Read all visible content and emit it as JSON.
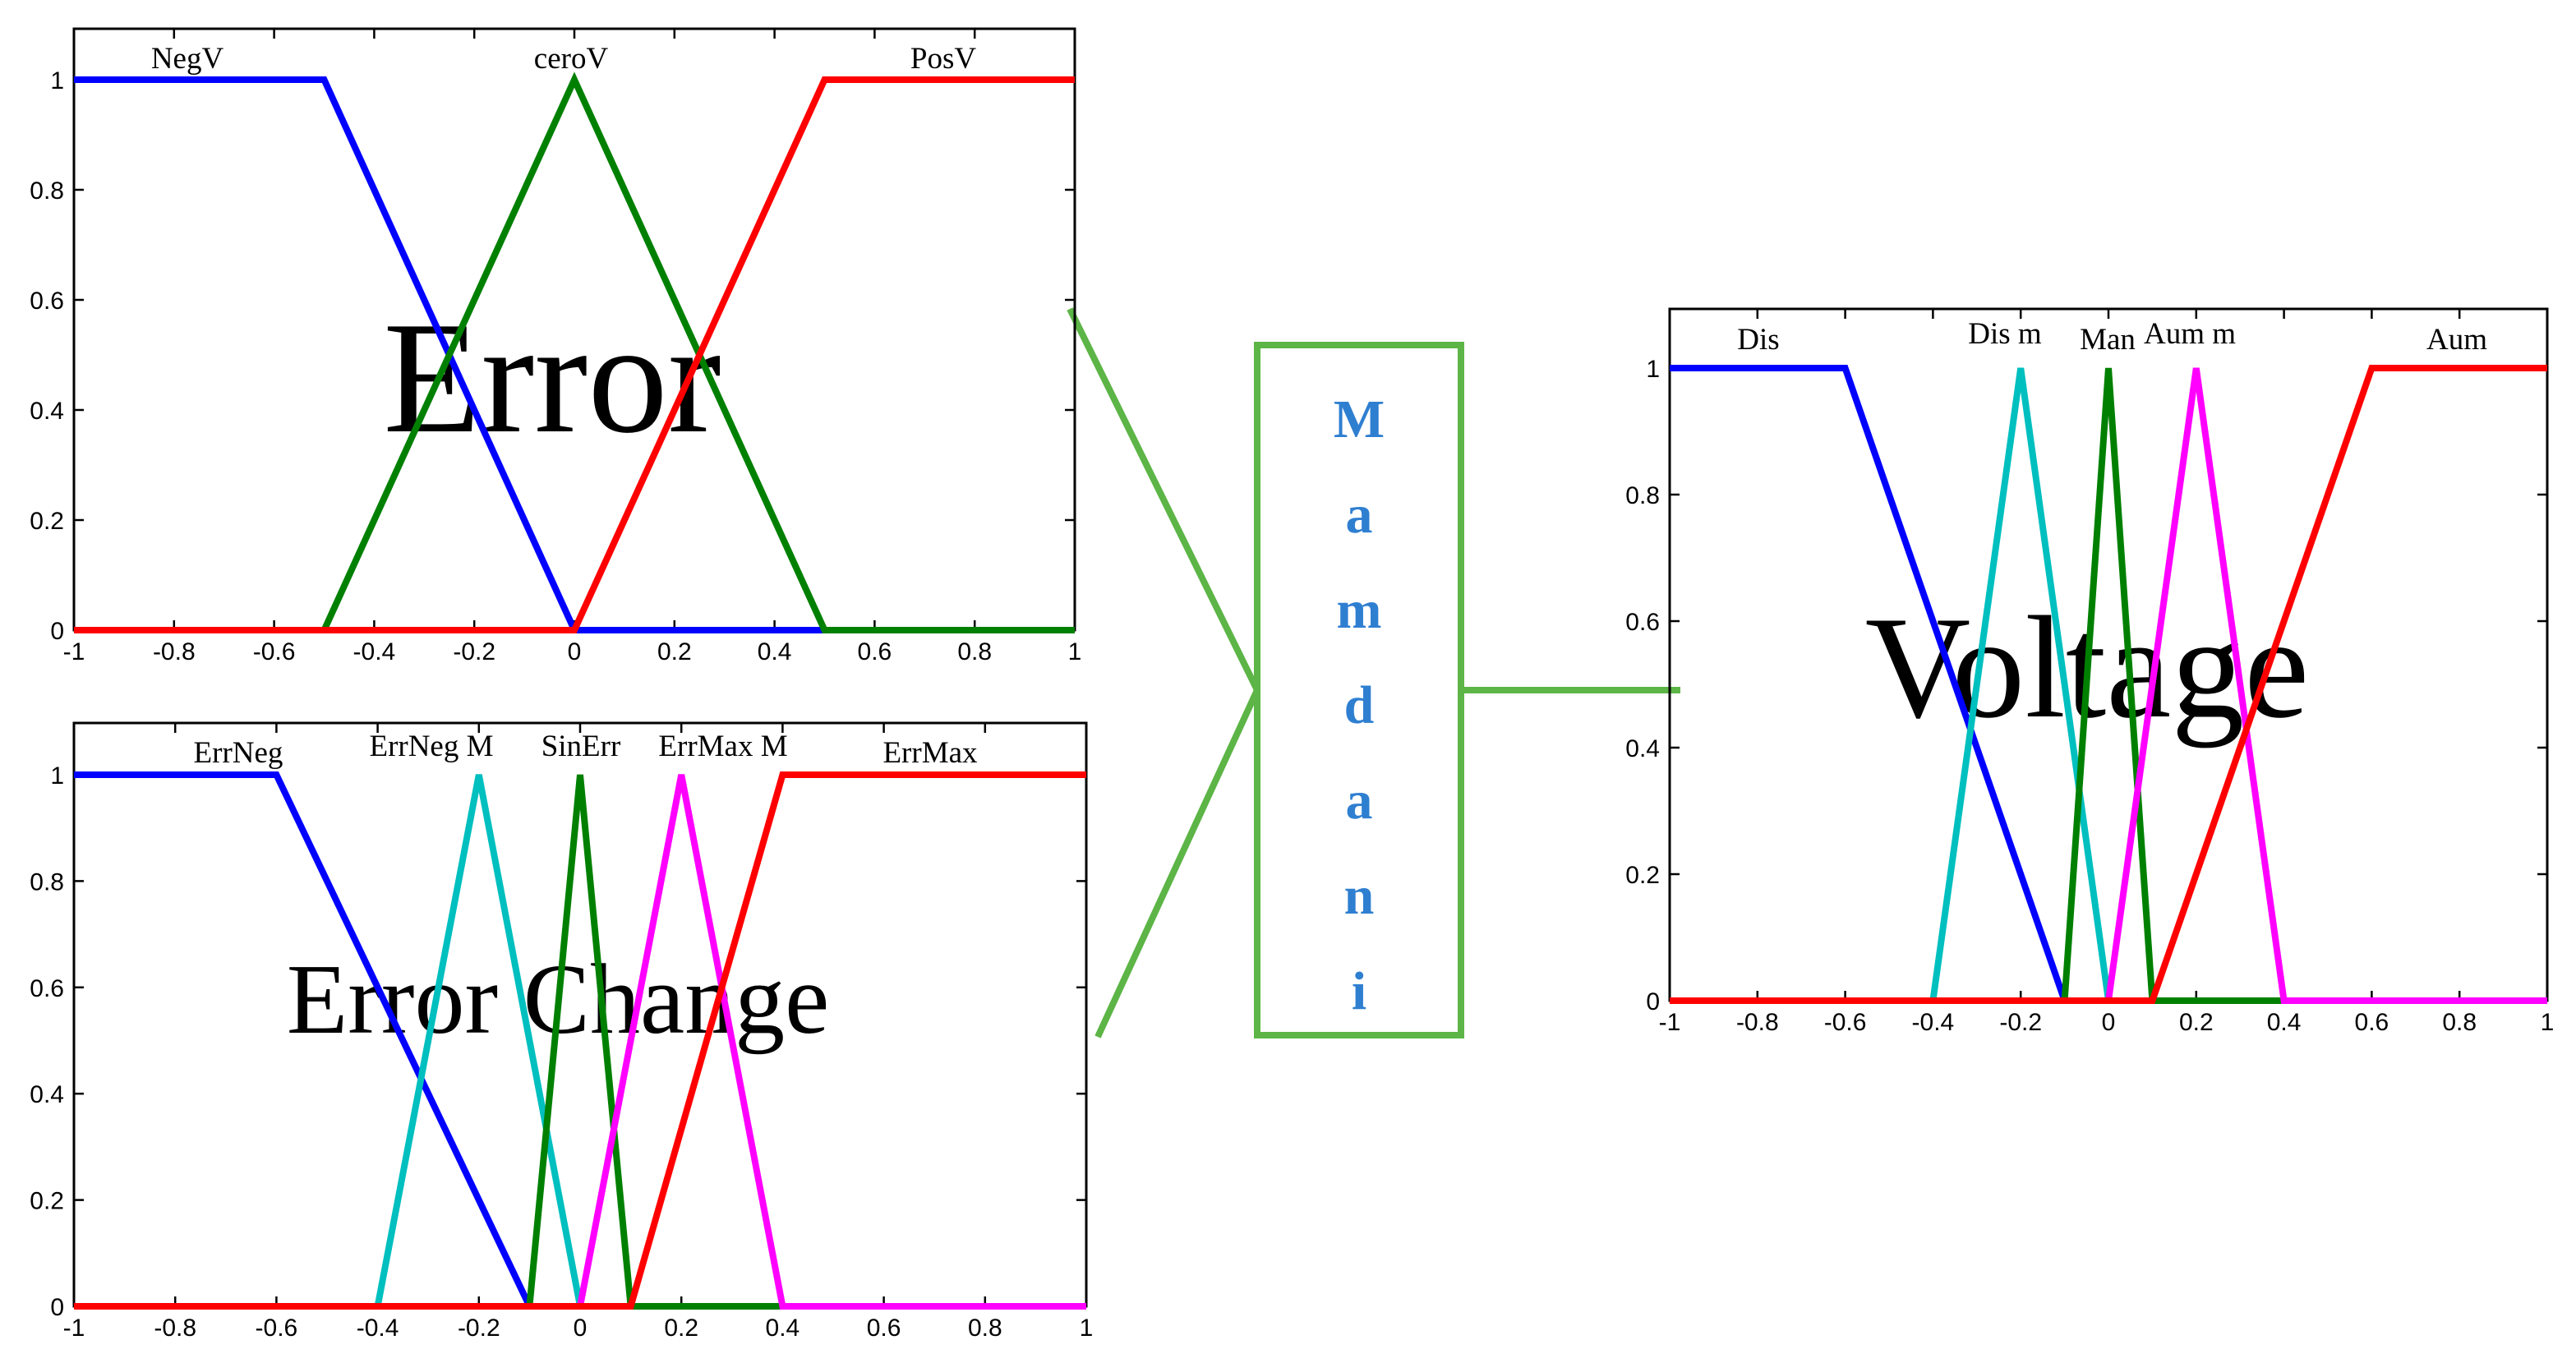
{
  "colors": {
    "connector": "#5cb546",
    "mamdani_text": "#2f7fd1"
  },
  "mamdani": {
    "letters": [
      "M",
      "a",
      "m",
      "d",
      "a",
      "n",
      "i"
    ]
  },
  "chart_data": [
    {
      "type": "line",
      "overlay_label": "Error",
      "x_ticks": [
        "-1",
        "-0.8",
        "-0.6",
        "-0.4",
        "-0.2",
        "0",
        "0.2",
        "0.4",
        "0.6",
        "0.8",
        "1"
      ],
      "y_ticks": [
        "0",
        "0.2",
        "0.4",
        "0.6",
        "0.8",
        "1"
      ],
      "xlim": [
        -1,
        1
      ],
      "ylim": [
        0,
        1
      ],
      "series": [
        {
          "name": "NegV",
          "color": "#0000ff",
          "x": [
            -1,
            -0.5,
            0,
            1
          ],
          "y": [
            1,
            1,
            0,
            0
          ]
        },
        {
          "name": "ceroV",
          "color": "#008000",
          "x": [
            -1,
            -0.5,
            0,
            0.5,
            1
          ],
          "y": [
            0,
            0,
            1,
            0,
            0
          ]
        },
        {
          "name": "PosV",
          "color": "#ff0000",
          "x": [
            -1,
            0,
            0.5,
            1
          ],
          "y": [
            0,
            0,
            1,
            1
          ]
        }
      ]
    },
    {
      "type": "line",
      "overlay_label": "Error Change",
      "x_ticks": [
        "-1",
        "-0.8",
        "-0.6",
        "-0.4",
        "-0.2",
        "0",
        "0.2",
        "0.4",
        "0.6",
        "0.8",
        "1"
      ],
      "y_ticks": [
        "0",
        "0.2",
        "0.4",
        "0.6",
        "0.8",
        "1"
      ],
      "xlim": [
        -1,
        1
      ],
      "ylim": [
        0,
        1
      ],
      "series": [
        {
          "name": "ErrNeg",
          "color": "#0000ff",
          "x": [
            -1,
            -0.6,
            -0.1,
            1
          ],
          "y": [
            1,
            1,
            0,
            0
          ]
        },
        {
          "name": "ErrNeg M",
          "color": "#00bfbf",
          "x": [
            -1,
            -0.4,
            -0.2,
            0,
            1
          ],
          "y": [
            0,
            0,
            1,
            0,
            0
          ]
        },
        {
          "name": "SinErr",
          "color": "#008000",
          "x": [
            -1,
            -0.1,
            0,
            0.1,
            1
          ],
          "y": [
            0,
            0,
            1,
            0,
            0
          ]
        },
        {
          "name": "ErrMax M",
          "color": "#ff00ff",
          "x": [
            -1,
            0,
            0.2,
            0.4,
            1
          ],
          "y": [
            0,
            0,
            1,
            0,
            0
          ]
        },
        {
          "name": "ErrMax",
          "color": "#ff0000",
          "x": [
            -1,
            0.1,
            0.4,
            1
          ],
          "y": [
            0,
            0,
            1,
            1
          ]
        }
      ]
    },
    {
      "type": "line",
      "overlay_label": "Voltage",
      "x_ticks": [
        "-1",
        "-0.8",
        "-0.6",
        "-0.4",
        "-0.2",
        "0",
        "0.2",
        "0.4",
        "0.6",
        "0.8",
        "1"
      ],
      "y_ticks": [
        "0",
        "0.2",
        "0.4",
        "0.6",
        "0.8",
        "1"
      ],
      "xlim": [
        -1,
        1
      ],
      "ylim": [
        0,
        1
      ],
      "series": [
        {
          "name": "Dis",
          "color": "#0000ff",
          "x": [
            -1,
            -0.6,
            -0.1,
            1
          ],
          "y": [
            1,
            1,
            0,
            0
          ]
        },
        {
          "name": "Dis m",
          "color": "#00bfbf",
          "x": [
            -1,
            -0.4,
            -0.2,
            0,
            1
          ],
          "y": [
            0,
            0,
            1,
            0,
            0
          ]
        },
        {
          "name": "Man",
          "color": "#008000",
          "x": [
            -1,
            -0.1,
            0,
            0.1,
            1
          ],
          "y": [
            0,
            0,
            1,
            0,
            0
          ]
        },
        {
          "name": "Aum m",
          "color": "#ff00ff",
          "x": [
            -1,
            0,
            0.2,
            0.4,
            1
          ],
          "y": [
            0,
            0,
            1,
            0,
            0
          ]
        },
        {
          "name": "Aum",
          "color": "#ff0000",
          "x": [
            -1,
            0.1,
            0.6,
            1
          ],
          "y": [
            0,
            0,
            1,
            1
          ]
        }
      ]
    }
  ]
}
